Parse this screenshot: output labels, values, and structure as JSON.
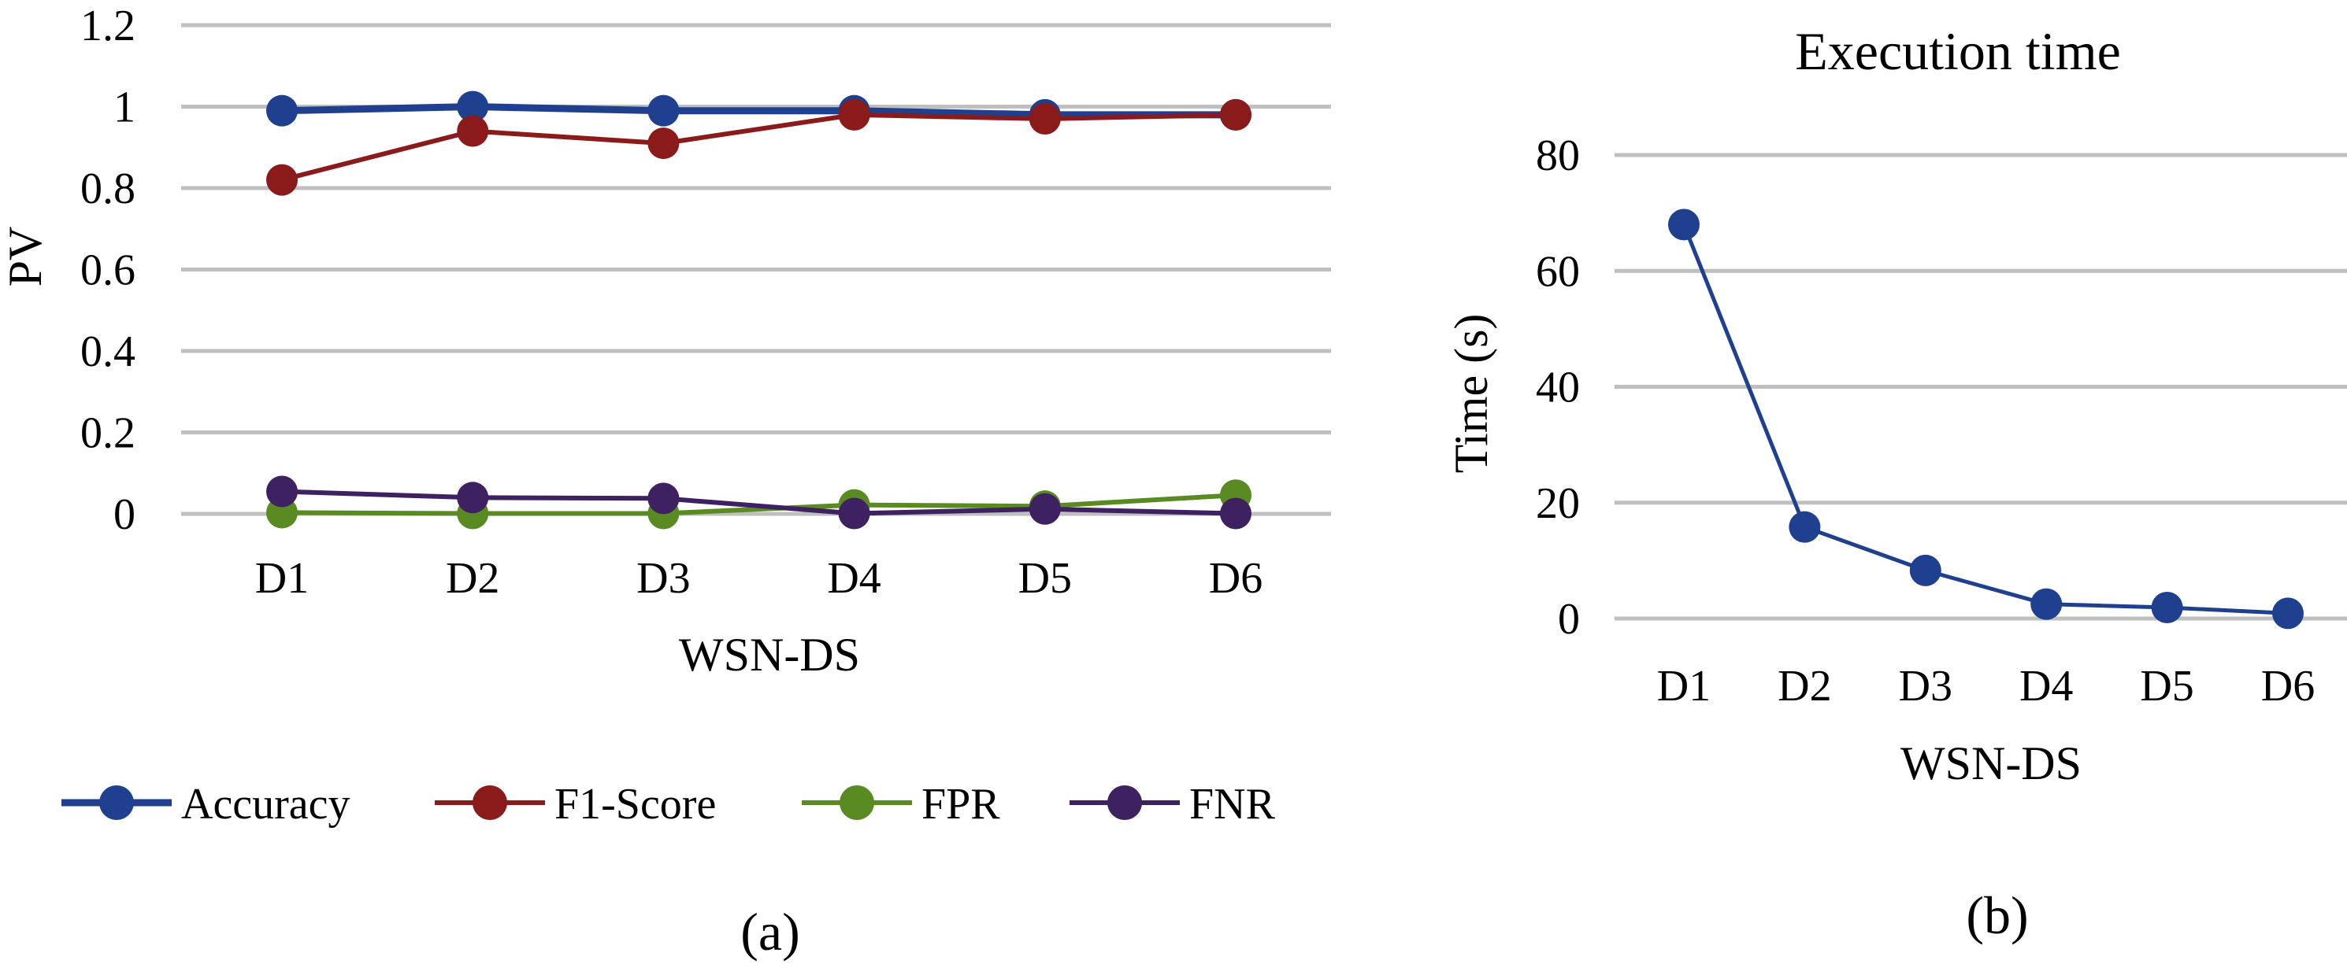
{
  "chart_data": [
    {
      "id": "a",
      "type": "line",
      "title": "",
      "caption": "(a)",
      "xlabel": "WSN-DS",
      "ylabel": "PV",
      "categories": [
        "D1",
        "D2",
        "D3",
        "D4",
        "D5",
        "D6"
      ],
      "ylim": [
        0,
        1.2
      ],
      "yticks": [
        0,
        0.2,
        0.4,
        0.6,
        0.8,
        1,
        1.2
      ],
      "ytick_labels": [
        "0",
        "0.2",
        "0.4",
        "0.6",
        "0.8",
        "1",
        "1.2"
      ],
      "grid": true,
      "legend_position": "bottom",
      "series": [
        {
          "name": "Accuracy",
          "color": "#1f3f8f",
          "values": [
            0.99,
            1.0,
            0.99,
            0.99,
            0.98,
            0.98
          ]
        },
        {
          "name": "F1-Score",
          "color": "#8b1a1a",
          "values": [
            0.82,
            0.94,
            0.91,
            0.98,
            0.97,
            0.98
          ]
        },
        {
          "name": "FPR",
          "color": "#5a8a22",
          "values": [
            0.003,
            0.001,
            0.001,
            0.022,
            0.019,
            0.046
          ]
        },
        {
          "name": "FNR",
          "color": "#3d2160",
          "values": [
            0.055,
            0.04,
            0.038,
            0.001,
            0.012,
            0.001
          ]
        }
      ]
    },
    {
      "id": "b",
      "type": "line",
      "title": "Execution time",
      "caption": "(b)",
      "xlabel": "WSN-DS",
      "ylabel": "Time (s)",
      "categories": [
        "D1",
        "D2",
        "D3",
        "D4",
        "D5",
        "D6"
      ],
      "ylim": [
        0,
        80
      ],
      "yticks": [
        0,
        20,
        40,
        60,
        80
      ],
      "ytick_labels": [
        "0",
        "20",
        "40",
        "60",
        "80"
      ],
      "grid": true,
      "series": [
        {
          "name": "Time",
          "color": "#1f3f8f",
          "values": [
            68,
            15.8,
            8.3,
            2.5,
            1.9,
            0.9
          ]
        }
      ]
    }
  ]
}
